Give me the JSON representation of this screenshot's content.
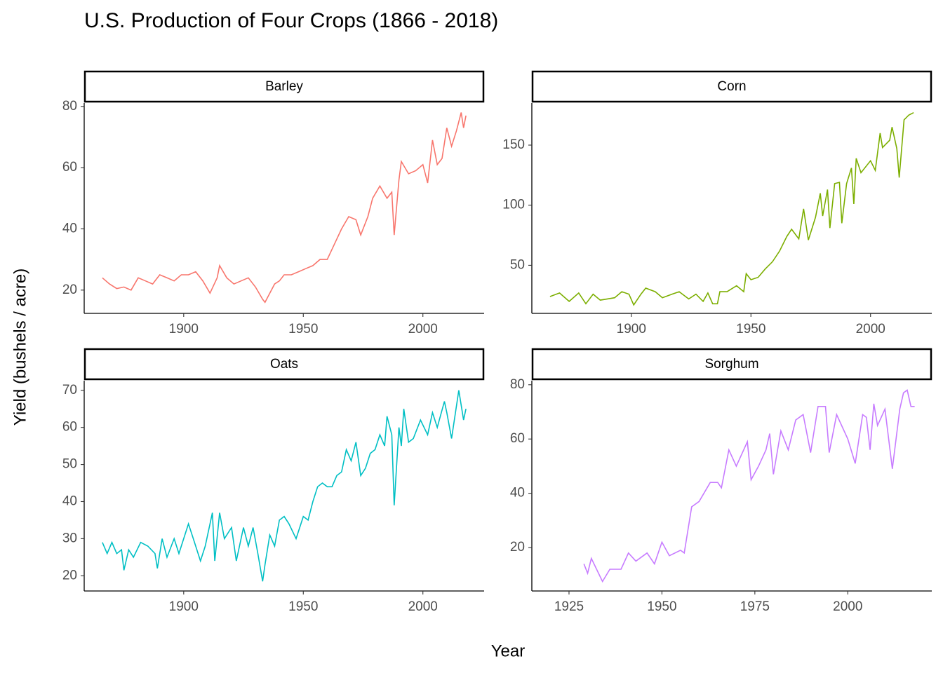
{
  "title": "U.S. Production of Four Crops (1866 - 2018)",
  "x_label": "Year",
  "y_label": "Yield (bushels / acre)",
  "chart_data": [
    {
      "type": "line",
      "title": "Barley",
      "color": "#F8766D",
      "x": [
        1866,
        1869,
        1872,
        1875,
        1878,
        1881,
        1884,
        1887,
        1890,
        1893,
        1896,
        1899,
        1902,
        1905,
        1908,
        1911,
        1914,
        1915,
        1918,
        1921,
        1924,
        1927,
        1930,
        1933,
        1934,
        1936,
        1938,
        1940,
        1942,
        1945,
        1948,
        1951,
        1954,
        1957,
        1960,
        1963,
        1966,
        1969,
        1972,
        1974,
        1977,
        1979,
        1982,
        1985,
        1987,
        1988,
        1990,
        1991,
        1994,
        1997,
        2000,
        2002,
        2004,
        2006,
        2008,
        2010,
        2012,
        2014,
        2016,
        2017,
        2018
      ],
      "values": [
        24,
        22,
        20.5,
        21,
        20,
        24,
        23,
        22,
        25,
        24,
        23,
        25,
        25,
        26,
        23,
        19,
        24,
        28,
        24,
        22,
        23,
        24,
        21,
        17,
        16,
        19,
        22,
        23,
        25,
        25,
        26,
        27,
        28,
        30,
        30,
        35,
        40,
        44,
        43,
        38,
        44,
        50,
        54,
        50,
        52,
        38,
        56,
        62,
        58,
        59,
        61,
        55,
        69,
        61,
        63,
        73,
        67,
        72,
        78,
        73,
        77
      ],
      "xlim": [
        1858.4,
        2025.6
      ],
      "ylim": [
        12.4,
        81.1
      ],
      "xticks": [
        1900,
        1950,
        2000
      ],
      "yticks": [
        20,
        40,
        60,
        80
      ]
    },
    {
      "type": "line",
      "title": "Corn",
      "color": "#7CAE00",
      "x": [
        1866,
        1870,
        1874,
        1878,
        1881,
        1884,
        1887,
        1890,
        1893,
        1896,
        1899,
        1901,
        1904,
        1906,
        1910,
        1913,
        1917,
        1920,
        1924,
        1927,
        1930,
        1932,
        1934,
        1936,
        1937,
        1940,
        1944,
        1947,
        1948,
        1950,
        1953,
        1956,
        1959,
        1962,
        1965,
        1967,
        1970,
        1972,
        1974,
        1977,
        1979,
        1980,
        1982,
        1983,
        1985,
        1987,
        1988,
        1990,
        1992,
        1993,
        1994,
        1996,
        2000,
        2002,
        2004,
        2005,
        2008,
        2009,
        2011,
        2012,
        2014,
        2016,
        2018
      ],
      "values": [
        24,
        27,
        20,
        27,
        18,
        26,
        21,
        22,
        23,
        28,
        26,
        17,
        26,
        31,
        28,
        23,
        26,
        28,
        22,
        26,
        20,
        27,
        18,
        18,
        28,
        28,
        33,
        28,
        43,
        38,
        40,
        47,
        53,
        62,
        74,
        80,
        72,
        97,
        71,
        90,
        110,
        91,
        113,
        81,
        118,
        119,
        85,
        118,
        131,
        101,
        139,
        127,
        137,
        129,
        160,
        148,
        154,
        165,
        147,
        123,
        171,
        175,
        177
      ],
      "xlim": [
        1858.4,
        2025.6
      ],
      "ylim": [
        10,
        185
      ],
      "xticks": [
        1900,
        1950,
        2000
      ],
      "yticks": [
        50,
        100,
        150
      ]
    },
    {
      "type": "line",
      "title": "Oats",
      "color": "#00BFC4",
      "x": [
        1866,
        1868,
        1870,
        1872,
        1874,
        1875,
        1877,
        1879,
        1882,
        1885,
        1888,
        1889,
        1891,
        1893,
        1896,
        1898,
        1900,
        1902,
        1904,
        1907,
        1909,
        1912,
        1913,
        1915,
        1917,
        1920,
        1922,
        1925,
        1927,
        1929,
        1931,
        1933,
        1934,
        1936,
        1938,
        1940,
        1942,
        1944,
        1947,
        1950,
        1952,
        1954,
        1956,
        1958,
        1960,
        1962,
        1964,
        1966,
        1968,
        1970,
        1972,
        1974,
        1976,
        1978,
        1980,
        1982,
        1984,
        1985,
        1987,
        1988,
        1990,
        1991,
        1992,
        1994,
        1996,
        1999,
        2002,
        2004,
        2006,
        2009,
        2010,
        2012,
        2015,
        2017,
        2018
      ],
      "values": [
        29,
        26,
        29,
        26,
        27,
        21.5,
        27,
        25,
        29,
        28,
        26,
        22,
        30,
        25,
        30,
        26,
        30,
        34,
        30,
        24,
        28,
        37,
        24,
        37,
        30,
        33,
        24,
        33,
        28,
        33,
        26,
        18.5,
        23,
        31,
        28,
        35,
        36,
        34,
        30,
        36,
        35,
        40,
        44,
        45,
        44,
        44,
        47,
        48,
        54,
        51,
        56,
        47,
        49,
        53,
        54,
        58,
        55,
        63,
        58,
        39,
        60,
        55,
        65,
        56,
        57,
        62,
        58,
        64,
        60,
        67,
        64,
        57,
        70,
        62,
        65
      ],
      "xlim": [
        1858.4,
        2025.6
      ],
      "ylim": [
        15.9,
        72.6
      ],
      "xticks": [
        1900,
        1950,
        2000
      ],
      "yticks": [
        20,
        30,
        40,
        50,
        60,
        70
      ]
    },
    {
      "type": "line",
      "title": "Sorghum",
      "color": "#C77CFF",
      "x": [
        1929,
        1930,
        1931,
        1934,
        1936,
        1939,
        1941,
        1943,
        1946,
        1948,
        1950,
        1952,
        1955,
        1956,
        1958,
        1960,
        1963,
        1965,
        1966,
        1968,
        1970,
        1973,
        1974,
        1976,
        1978,
        1979,
        1980,
        1982,
        1984,
        1986,
        1988,
        1990,
        1992,
        1994,
        1995,
        1997,
        2000,
        2002,
        2004,
        2005,
        2006,
        2007,
        2008,
        2010,
        2012,
        2014,
        2015,
        2016,
        2017,
        2018
      ],
      "values": [
        14,
        10.5,
        16,
        7.5,
        12,
        12,
        18,
        15,
        18,
        14,
        22,
        17,
        19,
        18,
        35,
        37,
        44,
        44,
        42,
        56,
        50,
        59,
        45,
        50,
        56,
        62,
        47,
        63,
        56,
        67,
        69,
        55,
        72,
        72,
        55,
        69,
        60,
        51,
        69,
        68,
        56,
        73,
        65,
        71,
        49,
        71,
        77,
        78,
        72,
        72
      ],
      "xlim": [
        1915,
        2022.6
      ],
      "ylim": [
        4,
        81.5
      ],
      "xticks": [
        1925,
        1950,
        1975,
        2000
      ],
      "yticks": [
        20,
        40,
        60,
        80
      ]
    }
  ]
}
